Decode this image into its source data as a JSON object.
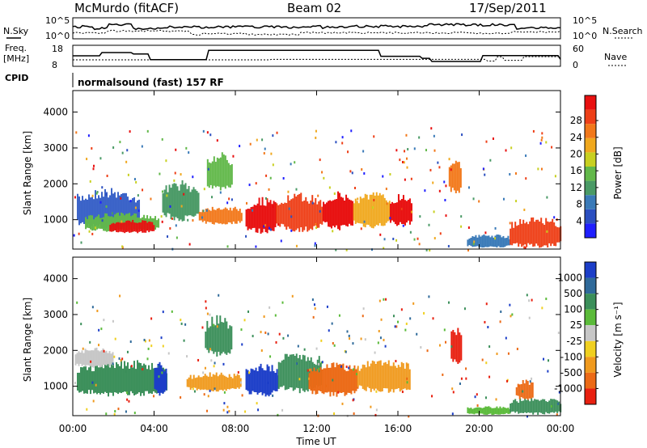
{
  "header": {
    "station": "McMurdo (fitACF)",
    "beam": "Beam 02",
    "date": "17/Sep/2011"
  },
  "top_panels": {
    "nsky_label": "N.Sky",
    "nsearch_label": "N.Search",
    "freq_label_1": "Freq.",
    "freq_label_2": "[MHz]",
    "nave_label": "Nave",
    "cpid_label": "CPID",
    "cpid_value": "normalsound (fast) 157 RF",
    "noise_ticks": [
      "10^5",
      "10^0"
    ],
    "freq_ticks": [
      "18",
      "8"
    ],
    "nave_ticks": [
      "60",
      "0"
    ]
  },
  "chart_data": [
    {
      "type": "heatmap",
      "panel": "power",
      "ylabel": "Slant Range [km]",
      "y_ticks": [
        "1000",
        "2000",
        "3000",
        "4000"
      ],
      "ylim": [
        180,
        4600
      ],
      "colorbar_label": "Power [dB]",
      "colorbar_ticks": [
        "4",
        "8",
        "12",
        "16",
        "20",
        "24",
        "28"
      ],
      "colorbar_colors": [
        "#1f1fff",
        "#2b4fc0",
        "#3a7ab8",
        "#4a9a66",
        "#62b84a",
        "#c8d020",
        "#f0a81e",
        "#f2781a",
        "#ee3f17",
        "#e81010"
      ],
      "blobs": [
        {
          "t0": 0.2,
          "t1": 3.3,
          "r0": 700,
          "r1": 1900,
          "c": "#3a62c8"
        },
        {
          "t0": 0.6,
          "t1": 4.2,
          "r0": 650,
          "r1": 1200,
          "c": "#62b84a"
        },
        {
          "t0": 1.8,
          "t1": 4.0,
          "r0": 620,
          "r1": 1000,
          "c": "#e81010"
        },
        {
          "t0": 4.4,
          "t1": 6.2,
          "r0": 950,
          "r1": 2100,
          "c": "#4a9a66"
        },
        {
          "t0": 6.2,
          "t1": 8.3,
          "r0": 850,
          "r1": 1400,
          "c": "#f2781a"
        },
        {
          "t0": 6.6,
          "t1": 7.8,
          "r0": 1800,
          "r1": 2900,
          "c": "#62b84a"
        },
        {
          "t0": 8.5,
          "t1": 10.0,
          "r0": 600,
          "r1": 1650,
          "c": "#e81010"
        },
        {
          "t0": 10.0,
          "t1": 12.3,
          "r0": 650,
          "r1": 1750,
          "c": "#ee3f17"
        },
        {
          "t0": 12.3,
          "t1": 13.8,
          "r0": 700,
          "r1": 1800,
          "c": "#e81010"
        },
        {
          "t0": 13.8,
          "t1": 15.6,
          "r0": 750,
          "r1": 1800,
          "c": "#f0a81e"
        },
        {
          "t0": 15.6,
          "t1": 16.7,
          "r0": 800,
          "r1": 1750,
          "c": "#e81010"
        },
        {
          "t0": 18.5,
          "t1": 19.1,
          "r0": 1700,
          "r1": 2800,
          "c": "#f2781a"
        },
        {
          "t0": 19.4,
          "t1": 21.5,
          "r0": 200,
          "r1": 600,
          "c": "#3a7ab8"
        },
        {
          "t0": 21.5,
          "t1": 24.0,
          "r0": 200,
          "r1": 1100,
          "c": "#ee3f17"
        }
      ]
    },
    {
      "type": "heatmap",
      "panel": "velocity",
      "xlabel": "Time UT",
      "x_ticks": [
        "00:00",
        "04:00",
        "08:00",
        "12:00",
        "16:00",
        "20:00",
        "00:00"
      ],
      "xlim": [
        0,
        24
      ],
      "ylabel": "Slant Range [km]",
      "y_ticks": [
        "1000",
        "2000",
        "3000",
        "4000"
      ],
      "ylim": [
        180,
        4600
      ],
      "colorbar_label": "Velocity [m s⁻¹]",
      "colorbar_ticks": [
        "1000",
        "500",
        "100",
        "25",
        "-25",
        "-100",
        "-500",
        "-1000"
      ],
      "colorbar_colors": [
        "#1c3ec8",
        "#2f6a9a",
        "#3b8f5a",
        "#5bbb3a",
        "#c7c7c7",
        "#f0d020",
        "#f09a1e",
        "#ec6a16",
        "#e82010"
      ],
      "blobs": [
        {
          "t0": 0.2,
          "t1": 4.6,
          "r0": 700,
          "r1": 1750,
          "c": "#3b8f5a"
        },
        {
          "t0": 0.1,
          "t1": 2.0,
          "r0": 1500,
          "r1": 2100,
          "c": "#c7c7c7"
        },
        {
          "t0": 4.0,
          "t1": 4.6,
          "r0": 700,
          "r1": 1700,
          "c": "#1c3ec8"
        },
        {
          "t0": 5.6,
          "t1": 8.3,
          "r0": 850,
          "r1": 1400,
          "c": "#f09a1e"
        },
        {
          "t0": 6.5,
          "t1": 7.8,
          "r0": 1800,
          "r1": 3000,
          "c": "#3b8f5a"
        },
        {
          "t0": 8.5,
          "t1": 10.1,
          "r0": 700,
          "r1": 1650,
          "c": "#1c3ec8"
        },
        {
          "t0": 10.1,
          "t1": 12.2,
          "r0": 800,
          "r1": 2000,
          "c": "#3b8f5a"
        },
        {
          "t0": 11.6,
          "t1": 14.0,
          "r0": 700,
          "r1": 1700,
          "c": "#ec6a16"
        },
        {
          "t0": 14.0,
          "t1": 16.6,
          "r0": 800,
          "r1": 1800,
          "c": "#f09a1e"
        },
        {
          "t0": 18.6,
          "t1": 19.1,
          "r0": 1600,
          "r1": 2700,
          "c": "#e82010"
        },
        {
          "t0": 19.4,
          "t1": 21.5,
          "r0": 200,
          "r1": 450,
          "c": "#5bbb3a"
        },
        {
          "t0": 21.5,
          "t1": 24.0,
          "r0": 200,
          "r1": 700,
          "c": "#3b8f5a"
        },
        {
          "t0": 21.8,
          "t1": 22.6,
          "r0": 600,
          "r1": 1200,
          "c": "#ec6a16"
        }
      ]
    }
  ]
}
